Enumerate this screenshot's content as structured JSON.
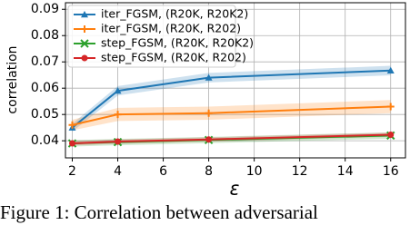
{
  "chart_data": {
    "type": "line",
    "ylabel": "correlation",
    "xlabel": "ε",
    "x": [
      2,
      4,
      8,
      16
    ],
    "xlim": [
      1.7,
      16.65
    ],
    "xticks": [
      2,
      4,
      6,
      8,
      10,
      12,
      14,
      16
    ],
    "ylim": [
      0.0335,
      0.0925
    ],
    "yticks": [
      0.04,
      0.05,
      0.06,
      0.07,
      0.08,
      0.09
    ],
    "grid": true,
    "legend": "upper left",
    "series": [
      {
        "name": "iter_FGSM, (R20K, R20K2)",
        "color": "#1f77b4",
        "marker": "triangle",
        "values": [
          0.045,
          0.059,
          0.064,
          0.0667
        ],
        "errors": [
          0.0015,
          0.0018,
          0.0018,
          0.0018
        ]
      },
      {
        "name": "iter_FGSM, (R20K, R202)",
        "color": "#ff7f0e",
        "marker": "plus",
        "values": [
          0.046,
          0.05,
          0.0505,
          0.053
        ],
        "errors": [
          0.002,
          0.0025,
          0.0025,
          0.0025
        ]
      },
      {
        "name": "step_FGSM, (R20K, R20K2)",
        "color": "#2ca02c",
        "marker": "x",
        "values": [
          0.039,
          0.0395,
          0.0403,
          0.042
        ],
        "errors": [
          0.0012,
          0.0012,
          0.0012,
          0.0012
        ]
      },
      {
        "name": "step_FGSM, (R20K, R202)",
        "color": "#d62728",
        "marker": "circle",
        "values": [
          0.039,
          0.0397,
          0.0405,
          0.0423
        ],
        "errors": [
          0.0008,
          0.0008,
          0.0008,
          0.0008
        ]
      }
    ]
  },
  "caption": "Figure 1: Correlation between adversarial"
}
